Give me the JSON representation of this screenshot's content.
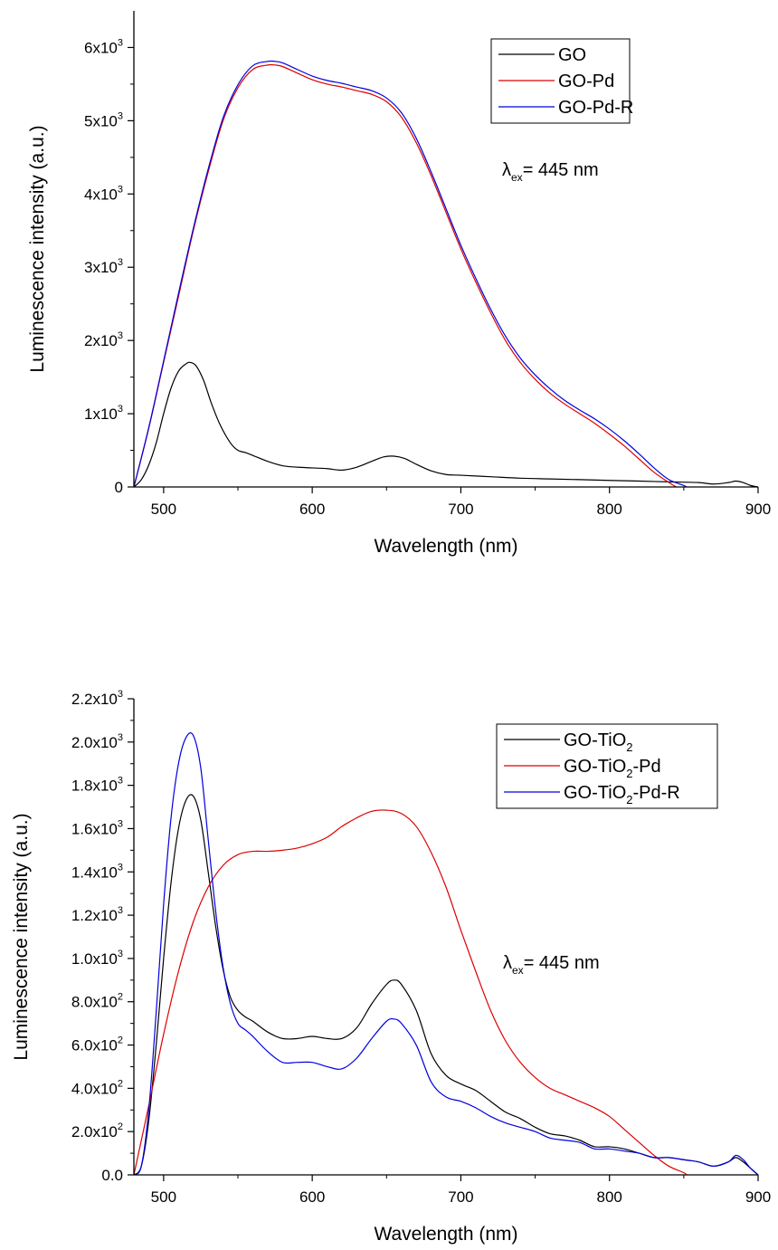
{
  "chart_data": [
    {
      "type": "line",
      "xlabel": "Wavelength (nm)",
      "ylabel": "Luminescence intensity (a.u.)",
      "xlim": [
        480,
        900
      ],
      "ylim": [
        0,
        6500
      ],
      "xticks": [
        500,
        600,
        700,
        800,
        900
      ],
      "xtick_labels": [
        "500",
        "600",
        "700",
        "800",
        "900"
      ],
      "yticks": [
        {
          "value": 0,
          "mant": "0",
          "exp": ""
        },
        {
          "value": 1000,
          "mant": "1x10",
          "exp": "3"
        },
        {
          "value": 2000,
          "mant": "2x10",
          "exp": "3"
        },
        {
          "value": 3000,
          "mant": "3x10",
          "exp": "3"
        },
        {
          "value": 4000,
          "mant": "4x10",
          "exp": "3"
        },
        {
          "value": 5000,
          "mant": "5x10",
          "exp": "3"
        },
        {
          "value": 6000,
          "mant": "6x10",
          "exp": "3"
        }
      ],
      "grid": false,
      "legend_position": "top-right",
      "annotation": {
        "symbol": "λ",
        "sub": "ex",
        "text": "= 445 nm"
      },
      "series": [
        {
          "name": "GO",
          "color": "#000000",
          "x": [
            480,
            485,
            490,
            495,
            500,
            505,
            510,
            515,
            518,
            522,
            527,
            532,
            538,
            545,
            550,
            555,
            560,
            570,
            580,
            590,
            600,
            610,
            620,
            630,
            640,
            648,
            655,
            662,
            670,
            680,
            690,
            700,
            720,
            740,
            760,
            780,
            800,
            820,
            840,
            860,
            870,
            880,
            885,
            890,
            895,
            900
          ],
          "y": [
            0,
            100,
            300,
            600,
            1000,
            1350,
            1580,
            1680,
            1700,
            1650,
            1450,
            1150,
            850,
            600,
            500,
            470,
            430,
            350,
            290,
            270,
            260,
            250,
            230,
            270,
            350,
            410,
            420,
            390,
            310,
            220,
            170,
            160,
            140,
            120,
            110,
            100,
            90,
            80,
            70,
            60,
            40,
            60,
            80,
            60,
            20,
            0
          ]
        },
        {
          "name": "GO-Pd",
          "color": "#dd0000",
          "x": [
            480,
            490,
            500,
            510,
            520,
            530,
            540,
            550,
            560,
            570,
            575,
            580,
            590,
            600,
            610,
            620,
            630,
            640,
            650,
            660,
            670,
            680,
            690,
            700,
            710,
            720,
            730,
            740,
            750,
            760,
            770,
            780,
            790,
            800,
            810,
            820,
            830,
            840,
            845
          ],
          "y": [
            0,
            800,
            1700,
            2600,
            3500,
            4300,
            5000,
            5450,
            5700,
            5760,
            5760,
            5740,
            5650,
            5560,
            5500,
            5460,
            5410,
            5360,
            5260,
            5050,
            4700,
            4250,
            3750,
            3250,
            2800,
            2380,
            2000,
            1700,
            1470,
            1280,
            1130,
            1000,
            870,
            720,
            560,
            380,
            200,
            60,
            0
          ]
        },
        {
          "name": "GO-Pd-R",
          "color": "#0000dd",
          "x": [
            480,
            490,
            500,
            510,
            520,
            530,
            540,
            550,
            560,
            570,
            575,
            580,
            590,
            600,
            610,
            620,
            630,
            640,
            650,
            660,
            670,
            680,
            690,
            700,
            710,
            720,
            730,
            740,
            750,
            760,
            770,
            780,
            790,
            800,
            810,
            820,
            830,
            840,
            850,
            852
          ],
          "y": [
            0,
            810,
            1720,
            2640,
            3530,
            4340,
            5040,
            5490,
            5750,
            5810,
            5810,
            5790,
            5700,
            5610,
            5550,
            5510,
            5460,
            5410,
            5310,
            5110,
            4760,
            4300,
            3800,
            3300,
            2850,
            2430,
            2060,
            1760,
            1530,
            1340,
            1180,
            1050,
            930,
            790,
            630,
            450,
            260,
            100,
            20,
            0
          ]
        }
      ]
    },
    {
      "type": "line",
      "xlabel": "Wavelength (nm)",
      "ylabel": "Luminescence intensity (a.u.)",
      "xlim": [
        480,
        900
      ],
      "ylim": [
        0,
        2200
      ],
      "xticks": [
        500,
        600,
        700,
        800,
        900
      ],
      "xtick_labels": [
        "500",
        "600",
        "700",
        "800",
        "900"
      ],
      "yticks": [
        {
          "value": 0,
          "mant": "0.0",
          "exp": ""
        },
        {
          "value": 200,
          "mant": "2.0x10",
          "exp": "2"
        },
        {
          "value": 400,
          "mant": "4.0x10",
          "exp": "2"
        },
        {
          "value": 600,
          "mant": "6.0x10",
          "exp": "2"
        },
        {
          "value": 800,
          "mant": "8.0x10",
          "exp": "2"
        },
        {
          "value": 1000,
          "mant": "1.0x10",
          "exp": "3"
        },
        {
          "value": 1200,
          "mant": "1.2x10",
          "exp": "3"
        },
        {
          "value": 1400,
          "mant": "1.4x10",
          "exp": "3"
        },
        {
          "value": 1600,
          "mant": "1.6x10",
          "exp": "3"
        },
        {
          "value": 1800,
          "mant": "1.8x10",
          "exp": "3"
        },
        {
          "value": 2000,
          "mant": "2.0x10",
          "exp": "3"
        },
        {
          "value": 2200,
          "mant": "2.2x10",
          "exp": "3"
        }
      ],
      "grid": false,
      "legend_position": "top-right",
      "annotation": {
        "symbol": "λ",
        "sub": "ex",
        "text": "= 445 nm"
      },
      "series": [
        {
          "name": "GO-TiO2",
          "label_main": "GO-TiO",
          "label_sub": "2",
          "label_tail": "",
          "color": "#000000",
          "x": [
            480,
            485,
            490,
            495,
            500,
            505,
            510,
            515,
            520,
            525,
            530,
            535,
            540,
            545,
            550,
            555,
            560,
            570,
            580,
            590,
            600,
            610,
            620,
            630,
            640,
            650,
            655,
            660,
            670,
            680,
            690,
            700,
            710,
            720,
            730,
            740,
            750,
            760,
            770,
            780,
            790,
            800,
            810,
            820,
            830,
            840,
            850,
            860,
            870,
            880,
            885,
            890,
            895,
            900
          ],
          "y": [
            0,
            40,
            250,
            600,
            1000,
            1350,
            1600,
            1730,
            1750,
            1640,
            1400,
            1150,
            950,
            820,
            760,
            730,
            710,
            660,
            630,
            630,
            640,
            630,
            630,
            680,
            790,
            880,
            900,
            880,
            760,
            560,
            460,
            420,
            390,
            340,
            290,
            260,
            220,
            190,
            180,
            160,
            130,
            130,
            120,
            100,
            80,
            80,
            70,
            60,
            40,
            60,
            80,
            60,
            30,
            0
          ]
        },
        {
          "name": "GO-TiO2-Pd",
          "label_main": "GO-TiO",
          "label_sub": "2",
          "label_tail": "-Pd",
          "color": "#dd0000",
          "x": [
            480,
            490,
            500,
            510,
            520,
            530,
            540,
            550,
            560,
            570,
            580,
            590,
            600,
            610,
            620,
            630,
            640,
            650,
            660,
            670,
            680,
            690,
            700,
            710,
            720,
            730,
            740,
            750,
            760,
            770,
            780,
            790,
            800,
            810,
            820,
            830,
            840,
            850,
            852
          ],
          "y": [
            0,
            320,
            650,
            940,
            1170,
            1330,
            1430,
            1480,
            1495,
            1495,
            1500,
            1510,
            1530,
            1560,
            1610,
            1650,
            1680,
            1685,
            1670,
            1610,
            1490,
            1330,
            1130,
            940,
            760,
            620,
            520,
            450,
            400,
            370,
            340,
            310,
            270,
            210,
            150,
            90,
            40,
            10,
            0
          ]
        },
        {
          "name": "GO-TiO2-Pd-R",
          "label_main": "GO-TiO",
          "label_sub": "2",
          "label_tail": "-Pd-R",
          "color": "#0000dd",
          "x": [
            480,
            485,
            490,
            495,
            500,
            505,
            510,
            515,
            520,
            525,
            530,
            535,
            540,
            545,
            550,
            555,
            560,
            570,
            580,
            590,
            600,
            610,
            620,
            630,
            640,
            650,
            655,
            660,
            670,
            680,
            690,
            700,
            710,
            720,
            730,
            740,
            750,
            760,
            770,
            780,
            790,
            800,
            810,
            820,
            830,
            840,
            850,
            860,
            870,
            880,
            885,
            890,
            895,
            900
          ],
          "y": [
            0,
            40,
            300,
            750,
            1250,
            1650,
            1900,
            2020,
            2030,
            1880,
            1550,
            1220,
            960,
            790,
            700,
            670,
            640,
            570,
            520,
            520,
            520,
            500,
            490,
            540,
            630,
            710,
            720,
            700,
            600,
            430,
            360,
            340,
            310,
            270,
            240,
            220,
            200,
            170,
            160,
            150,
            120,
            120,
            110,
            100,
            80,
            80,
            70,
            60,
            40,
            60,
            90,
            70,
            30,
            0
          ]
        }
      ]
    }
  ]
}
